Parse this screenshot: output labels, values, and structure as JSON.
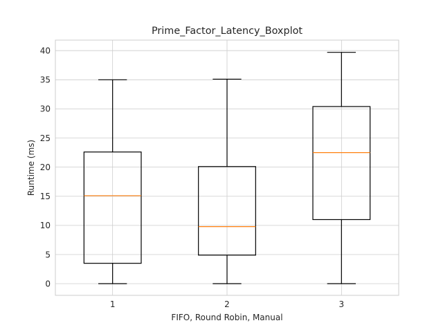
{
  "chart_data": {
    "type": "boxplot",
    "title": "Prime_Factor_Latency_Boxplot",
    "xlabel": "FIFO, Round Robin, Manual",
    "ylabel": "Runtime (ms)",
    "categories": [
      "1",
      "2",
      "3"
    ],
    "ylim": [
      -2,
      41.8
    ],
    "yticks": [
      0,
      5,
      10,
      15,
      20,
      25,
      30,
      35,
      40
    ],
    "grid": true,
    "boxes": [
      {
        "category": "1",
        "whislo": 0,
        "q1": 3.5,
        "median": 15.1,
        "q3": 22.6,
        "whishi": 35.0
      },
      {
        "category": "2",
        "whislo": 0,
        "q1": 4.9,
        "median": 9.8,
        "q3": 20.1,
        "whishi": 35.1
      },
      {
        "category": "3",
        "whislo": 0,
        "q1": 11.0,
        "median": 22.5,
        "q3": 30.4,
        "whishi": 39.7
      }
    ],
    "colors": {
      "box": "#000000",
      "median": "#ff7f0e",
      "grid": "#cccccc"
    }
  }
}
